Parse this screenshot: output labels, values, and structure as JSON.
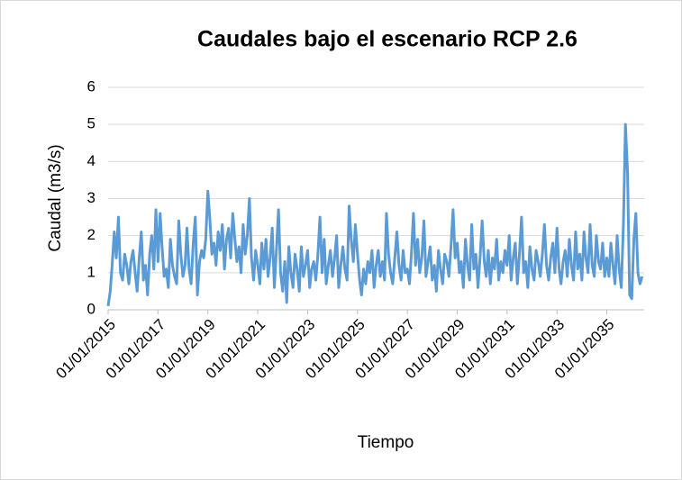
{
  "chart_data": {
    "type": "line",
    "title": "Caudales bajo el escenario RCP 2.6",
    "xlabel": "Tiempo",
    "ylabel": "Caudal (m3/s)",
    "xlim": [
      "01/01/2015",
      "01/07/2036"
    ],
    "xticks": [
      "01/01/2015",
      "01/01/2017",
      "01/01/2019",
      "01/01/2021",
      "01/01/2023",
      "01/01/2025",
      "01/01/2027",
      "01/01/2029",
      "01/01/2031",
      "01/01/2033",
      "01/01/2035"
    ],
    "ylim": [
      0,
      6
    ],
    "yticks": [
      0,
      1,
      2,
      3,
      4,
      5,
      6
    ],
    "grid": true,
    "x": [
      "01/01/2015",
      "01/02/2015",
      "01/03/2015",
      "01/04/2015",
      "01/05/2015",
      "01/06/2015",
      "01/07/2015",
      "01/08/2015",
      "01/09/2015",
      "01/10/2015",
      "01/11/2015",
      "01/12/2015",
      "01/01/2016",
      "01/02/2016",
      "01/03/2016",
      "01/04/2016",
      "01/05/2016",
      "01/06/2016",
      "01/07/2016",
      "01/08/2016",
      "01/09/2016",
      "01/10/2016",
      "01/11/2016",
      "01/12/2016",
      "01/01/2017",
      "01/02/2017",
      "01/03/2017",
      "01/04/2017",
      "01/05/2017",
      "01/06/2017",
      "01/07/2017",
      "01/08/2017",
      "01/09/2017",
      "01/10/2017",
      "01/11/2017",
      "01/12/2017",
      "01/01/2018",
      "01/02/2018",
      "01/03/2018",
      "01/04/2018",
      "01/05/2018",
      "01/06/2018",
      "01/07/2018",
      "01/08/2018",
      "01/09/2018",
      "01/10/2018",
      "01/11/2018",
      "01/12/2018",
      "01/01/2019",
      "01/02/2019",
      "01/03/2019",
      "01/04/2019",
      "01/05/2019",
      "01/06/2019",
      "01/07/2019",
      "01/08/2019",
      "01/09/2019",
      "01/10/2019",
      "01/11/2019",
      "01/12/2019",
      "01/01/2020",
      "01/02/2020",
      "01/03/2020",
      "01/04/2020",
      "01/05/2020",
      "01/06/2020",
      "01/07/2020",
      "01/08/2020",
      "01/09/2020",
      "01/10/2020",
      "01/11/2020",
      "01/12/2020",
      "01/01/2021",
      "01/02/2021",
      "01/03/2021",
      "01/04/2021",
      "01/05/2021",
      "01/06/2021",
      "01/07/2021",
      "01/08/2021",
      "01/09/2021",
      "01/10/2021",
      "01/11/2021",
      "01/12/2021",
      "01/01/2022",
      "01/02/2022",
      "01/03/2022",
      "01/04/2022",
      "01/05/2022",
      "01/06/2022",
      "01/07/2022",
      "01/08/2022",
      "01/09/2022",
      "01/10/2022",
      "01/11/2022",
      "01/12/2022",
      "01/01/2023",
      "01/02/2023",
      "01/03/2023",
      "01/04/2023",
      "01/05/2023",
      "01/06/2023",
      "01/07/2023",
      "01/08/2023",
      "01/09/2023",
      "01/10/2023",
      "01/11/2023",
      "01/12/2023",
      "01/01/2024",
      "01/02/2024",
      "01/03/2024",
      "01/04/2024",
      "01/05/2024",
      "01/06/2024",
      "01/07/2024",
      "01/08/2024",
      "01/09/2024",
      "01/10/2024",
      "01/11/2024",
      "01/12/2024",
      "01/01/2025",
      "01/02/2025",
      "01/03/2025",
      "01/04/2025",
      "01/05/2025",
      "01/06/2025",
      "01/07/2025",
      "01/08/2025",
      "01/09/2025",
      "01/10/2025",
      "01/11/2025",
      "01/12/2025",
      "01/01/2026",
      "01/02/2026",
      "01/03/2026",
      "01/04/2026",
      "01/05/2026",
      "01/06/2026",
      "01/07/2026",
      "01/08/2026",
      "01/09/2026",
      "01/10/2026",
      "01/11/2026",
      "01/12/2026",
      "01/01/2027",
      "01/02/2027",
      "01/03/2027",
      "01/04/2027",
      "01/05/2027",
      "01/06/2027",
      "01/07/2027",
      "01/08/2027",
      "01/09/2027",
      "01/10/2027",
      "01/11/2027",
      "01/12/2027",
      "01/01/2028",
      "01/02/2028",
      "01/03/2028",
      "01/04/2028",
      "01/05/2028",
      "01/06/2028",
      "01/07/2028",
      "01/08/2028",
      "01/09/2028",
      "01/10/2028",
      "01/11/2028",
      "01/12/2028",
      "01/01/2029",
      "01/02/2029",
      "01/03/2029",
      "01/04/2029",
      "01/05/2029",
      "01/06/2029",
      "01/07/2029",
      "01/08/2029",
      "01/09/2029",
      "01/10/2029",
      "01/11/2029",
      "01/12/2029",
      "01/01/2030",
      "01/02/2030",
      "01/03/2030",
      "01/04/2030",
      "01/05/2030",
      "01/06/2030",
      "01/07/2030",
      "01/08/2030",
      "01/09/2030",
      "01/10/2030",
      "01/11/2030",
      "01/12/2030",
      "01/01/2031",
      "01/02/2031",
      "01/03/2031",
      "01/04/2031",
      "01/05/2031",
      "01/06/2031",
      "01/07/2031",
      "01/08/2031",
      "01/09/2031",
      "01/10/2031",
      "01/11/2031",
      "01/12/2031",
      "01/01/2032",
      "01/02/2032",
      "01/03/2032",
      "01/04/2032",
      "01/05/2032",
      "01/06/2032",
      "01/07/2032",
      "01/08/2032",
      "01/09/2032",
      "01/10/2032",
      "01/11/2032",
      "01/12/2032",
      "01/01/2033",
      "01/02/2033",
      "01/03/2033",
      "01/04/2033",
      "01/05/2033",
      "01/06/2033",
      "01/07/2033",
      "01/08/2033",
      "01/09/2033",
      "01/10/2033",
      "01/11/2033",
      "01/12/2033",
      "01/01/2034",
      "01/02/2034",
      "01/03/2034",
      "01/04/2034",
      "01/05/2034",
      "01/06/2034",
      "01/07/2034",
      "01/08/2034",
      "01/09/2034",
      "01/10/2034",
      "01/11/2034",
      "01/12/2034",
      "01/01/2035",
      "01/02/2035",
      "01/03/2035",
      "01/04/2035",
      "01/05/2035",
      "01/06/2035",
      "01/07/2035",
      "01/08/2035",
      "01/09/2035",
      "01/10/2035",
      "01/11/2035",
      "01/12/2035",
      "01/01/2036",
      "01/02/2036",
      "01/03/2036",
      "01/04/2036",
      "01/05/2036",
      "01/06/2036"
    ],
    "series": [
      {
        "name": "Caudal",
        "color": "#5b9bd5",
        "values": [
          0.1,
          0.5,
          1.2,
          2.1,
          1.4,
          2.5,
          1.0,
          0.8,
          1.5,
          1.2,
          0.7,
          1.3,
          1.6,
          1.0,
          0.5,
          1.4,
          2.1,
          0.8,
          1.2,
          0.4,
          1.5,
          2.0,
          1.1,
          2.7,
          1.3,
          2.6,
          1.7,
          0.9,
          1.1,
          0.6,
          1.9,
          1.2,
          0.9,
          0.7,
          2.4,
          1.5,
          0.9,
          1.2,
          2.2,
          1.1,
          0.7,
          1.8,
          2.5,
          0.4,
          1.3,
          1.6,
          1.4,
          1.9,
          3.2,
          2.4,
          1.5,
          1.8,
          1.2,
          2.1,
          1.6,
          2.3,
          1.1,
          1.9,
          2.2,
          1.4,
          2.6,
          1.9,
          1.3,
          1.7,
          1.0,
          2.3,
          1.5,
          2.0,
          3.0,
          1.4,
          0.8,
          1.6,
          1.2,
          0.7,
          1.8,
          1.1,
          1.9,
          0.9,
          1.4,
          2.2,
          0.6,
          1.6,
          2.7,
          1.0,
          0.5,
          1.3,
          0.2,
          1.7,
          1.0,
          0.6,
          1.5,
          1.1,
          0.5,
          1.7,
          0.9,
          1.2,
          1.6,
          0.6,
          1.1,
          1.3,
          0.8,
          1.5,
          2.5,
          1.0,
          1.9,
          0.7,
          1.2,
          1.6,
          0.9,
          1.4,
          2.0,
          0.6,
          1.2,
          1.7,
          1.1,
          0.8,
          2.8,
          1.9,
          1.3,
          2.3,
          1.5,
          0.8,
          0.4,
          1.1,
          0.7,
          1.3,
          1.0,
          1.6,
          0.6,
          1.2,
          1.6,
          0.9,
          1.3,
          0.8,
          2.6,
          1.5,
          1.0,
          0.7,
          1.4,
          2.1,
          1.2,
          0.8,
          1.6,
          1.0,
          1.1,
          0.7,
          1.5,
          2.6,
          1.2,
          1.9,
          1.0,
          1.4,
          2.4,
          0.9,
          1.3,
          1.7,
          0.8,
          1.2,
          0.5,
          1.6,
          1.1,
          0.7,
          1.5,
          1.3,
          0.9,
          1.7,
          2.7,
          1.4,
          1.8,
          1.0,
          1.3,
          0.6,
          1.9,
          1.2,
          0.8,
          2.3,
          1.1,
          1.5,
          0.6,
          1.4,
          2.4,
          1.3,
          0.9,
          1.6,
          0.7,
          1.4,
          1.1,
          1.9,
          0.8,
          1.3,
          1.0,
          1.6,
          1.2,
          2.0,
          0.8,
          1.4,
          1.8,
          0.7,
          1.5,
          2.5,
          1.0,
          1.3,
          0.6,
          1.7,
          1.1,
          0.8,
          1.6,
          1.3,
          0.9,
          1.5,
          2.3,
          1.2,
          0.8,
          1.4,
          1.8,
          1.0,
          2.2,
          1.1,
          0.7,
          1.3,
          1.6,
          0.9,
          1.9,
          1.2,
          0.8,
          2.1,
          1.1,
          1.5,
          0.8,
          2.1,
          1.4,
          1.0,
          2.3,
          1.2,
          0.9,
          2.0,
          1.3,
          1.1,
          1.8,
          0.9,
          1.4,
          0.9,
          1.8,
          1.2,
          0.7,
          2.0,
          1.1,
          0.6,
          2.3,
          5.0,
          3.7,
          0.4,
          0.3,
          1.9,
          2.6,
          1.0,
          0.7,
          0.9
        ]
      }
    ]
  }
}
